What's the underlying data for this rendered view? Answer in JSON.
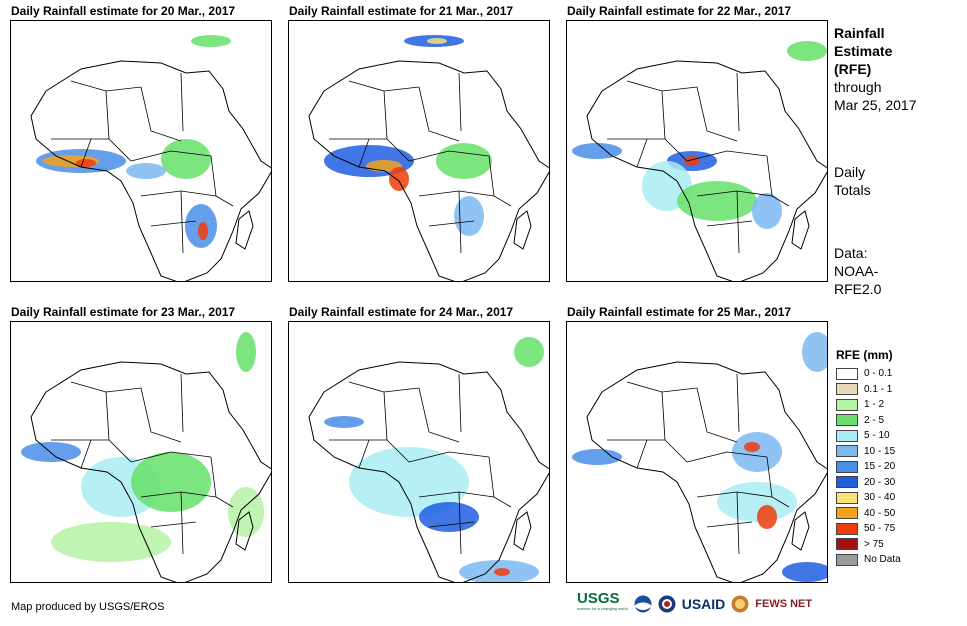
{
  "panels": [
    {
      "title": "Daily Rainfall estimate for 20 Mar., 2017"
    },
    {
      "title": "Daily Rainfall estimate for 21 Mar., 2017"
    },
    {
      "title": "Daily Rainfall estimate for 22 Mar., 2017"
    },
    {
      "title": "Daily Rainfall estimate for 23 Mar., 2017"
    },
    {
      "title": "Daily Rainfall estimate for 24 Mar., 2017"
    },
    {
      "title": "Daily Rainfall estimate for 25 Mar., 2017"
    }
  ],
  "side": {
    "title_line1": "Rainfall",
    "title_line2": "Estimate",
    "title_line3": "(RFE)",
    "through": "through",
    "date": "Mar 25, 2017",
    "daily1": "Daily",
    "daily2": "Totals",
    "data1": "Data:",
    "data2": "NOAA-",
    "data3": "RFE2.0"
  },
  "legend": {
    "title": "RFE (mm)",
    "items": [
      {
        "label": "0 - 0.1",
        "color": "#ffffff"
      },
      {
        "label": "0.1 - 1",
        "color": "#e9d7b6"
      },
      {
        "label": "1 - 2",
        "color": "#b4f2a4"
      },
      {
        "label": "2 - 5",
        "color": "#66e06a"
      },
      {
        "label": "5 - 10",
        "color": "#a9ecf2"
      },
      {
        "label": "10 - 15",
        "color": "#7ab8f2"
      },
      {
        "label": "15 - 20",
        "color": "#4a8ee8"
      },
      {
        "label": "20 - 30",
        "color": "#1f5ee0"
      },
      {
        "label": "30 - 40",
        "color": "#f6e27a"
      },
      {
        "label": "40 - 50",
        "color": "#f4a21a"
      },
      {
        "label": "50 - 75",
        "color": "#f03c0a"
      },
      {
        "label": "> 75",
        "color": "#a31212"
      },
      {
        "label": "No Data",
        "color": "#9b9b9b"
      }
    ]
  },
  "credit": "Map produced by USGS/EROS",
  "logos": {
    "usgs": "USGS",
    "usgs_sub": "science for a changing world",
    "usaid": "USAID",
    "fews": "FEWS NET"
  }
}
